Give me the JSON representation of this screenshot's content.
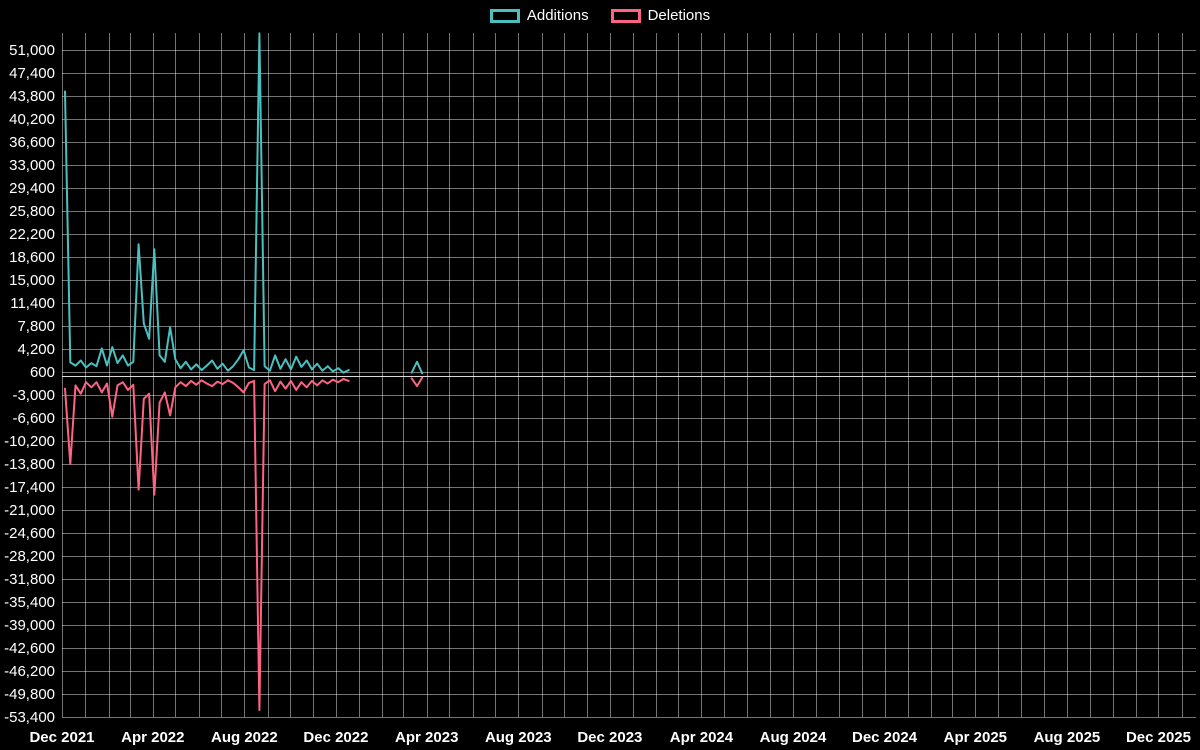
{
  "legend": {
    "items": [
      {
        "label": "Additions"
      },
      {
        "label": "Deletions"
      }
    ]
  },
  "chart_data": {
    "type": "line",
    "title": "",
    "background_color": "#000000",
    "text_color": "#ffffff",
    "grid": {
      "color": "rgba(255,255,255,0.45)",
      "zero_color": "rgba(255,255,255,0.85)",
      "on": true
    },
    "legend_position": "top-center",
    "x_axis": {
      "start": "2021-12-01",
      "end": "2026-01-20",
      "grid_interval": "month",
      "ticks": [
        {
          "date": "2021-12-01",
          "label": "Dec 2021"
        },
        {
          "date": "2022-04-01",
          "label": "Apr 2022"
        },
        {
          "date": "2022-08-01",
          "label": "Aug 2022"
        },
        {
          "date": "2022-12-01",
          "label": "Dec 2022"
        },
        {
          "date": "2023-04-01",
          "label": "Apr 2023"
        },
        {
          "date": "2023-08-01",
          "label": "Aug 2023"
        },
        {
          "date": "2023-12-01",
          "label": "Dec 2023"
        },
        {
          "date": "2024-04-01",
          "label": "Apr 2024"
        },
        {
          "date": "2024-08-01",
          "label": "Aug 2024"
        },
        {
          "date": "2024-12-01",
          "label": "Dec 2024"
        },
        {
          "date": "2025-04-01",
          "label": "Apr 2025"
        },
        {
          "date": "2025-08-01",
          "label": "Aug 2025"
        },
        {
          "date": "2025-12-01",
          "label": "Dec 2025"
        }
      ]
    },
    "y_axis": {
      "min": -53400,
      "max": 53660,
      "tick_step": 3600,
      "ticks": [
        {
          "value": 51000,
          "label": "51,000"
        },
        {
          "value": 47400,
          "label": "47,400"
        },
        {
          "value": 43800,
          "label": "43,800"
        },
        {
          "value": 40200,
          "label": "40,200"
        },
        {
          "value": 36600,
          "label": "36,600"
        },
        {
          "value": 33000,
          "label": "33,000"
        },
        {
          "value": 29400,
          "label": "29,400"
        },
        {
          "value": 25800,
          "label": "25,800"
        },
        {
          "value": 22200,
          "label": "22,200"
        },
        {
          "value": 18600,
          "label": "18,600"
        },
        {
          "value": 15000,
          "label": "15,000"
        },
        {
          "value": 11400,
          "label": "11,400"
        },
        {
          "value": 7800,
          "label": "7,800"
        },
        {
          "value": 4200,
          "label": "4,200"
        },
        {
          "value": 600,
          "label": "600"
        },
        {
          "value": -3000,
          "label": "-3,000"
        },
        {
          "value": -6600,
          "label": "-6,600"
        },
        {
          "value": -10200,
          "label": "-10,200"
        },
        {
          "value": -13800,
          "label": "-13,800"
        },
        {
          "value": -17400,
          "label": "-17,400"
        },
        {
          "value": -21000,
          "label": "-21,000"
        },
        {
          "value": -24600,
          "label": "-24,600"
        },
        {
          "value": -28200,
          "label": "-28,200"
        },
        {
          "value": -31800,
          "label": "-31,800"
        },
        {
          "value": -35400,
          "label": "-35,400"
        },
        {
          "value": -39000,
          "label": "-39,000"
        },
        {
          "value": -42600,
          "label": "-42,600"
        },
        {
          "value": -46200,
          "label": "-46,200"
        },
        {
          "value": -49800,
          "label": "-49,800"
        },
        {
          "value": -53400,
          "label": "-53,400"
        }
      ]
    },
    "series": [
      {
        "name": "Additions",
        "color": "#4bc0c0",
        "segments": [
          {
            "start": "2021-12-05",
            "step_days": 7,
            "values": [
              44500,
              2100,
              1600,
              2400,
              1300,
              2000,
              1500,
              4300,
              1600,
              4500,
              2000,
              3200,
              1600,
              2200,
              20600,
              8200,
              5800,
              19800,
              3200,
              2200,
              7600,
              2600,
              1200,
              2200,
              1000,
              1800,
              900,
              1600,
              2400,
              1100,
              1900,
              800,
              1500,
              2600,
              4000,
              1300,
              900,
              53600,
              1500,
              800,
              3200,
              1100,
              2600,
              1000,
              3000,
              1400,
              2400,
              1000,
              1900,
              800,
              1500,
              700,
              1200,
              500,
              900
            ]
          },
          {
            "start": "2023-03-12",
            "step_days": 7,
            "values": [
              500,
              2200,
              400
            ]
          }
        ]
      },
      {
        "name": "Deletions",
        "color": "#ff6384",
        "segments": [
          {
            "start": "2021-12-05",
            "step_days": 7,
            "values": [
              -2000,
              -13800,
              -1500,
              -2800,
              -1000,
              -1800,
              -1000,
              -2600,
              -1200,
              -6400,
              -1500,
              -1000,
              -2200,
              -1400,
              -17800,
              -3600,
              -2800,
              -18600,
              -4200,
              -2600,
              -6200,
              -1800,
              -1000,
              -1600,
              -800,
              -1400,
              -700,
              -1200,
              -1600,
              -900,
              -1300,
              -700,
              -1100,
              -1800,
              -2600,
              -1100,
              -800,
              -52300,
              -1300,
              -700,
              -2400,
              -900,
              -2000,
              -800,
              -2200,
              -1000,
              -1800,
              -800,
              -1500,
              -700,
              -1200,
              -600,
              -1000,
              -500,
              -800
            ]
          },
          {
            "start": "2023-03-12",
            "step_days": 7,
            "values": [
              -400,
              -1600,
              -300
            ]
          }
        ]
      }
    ]
  }
}
